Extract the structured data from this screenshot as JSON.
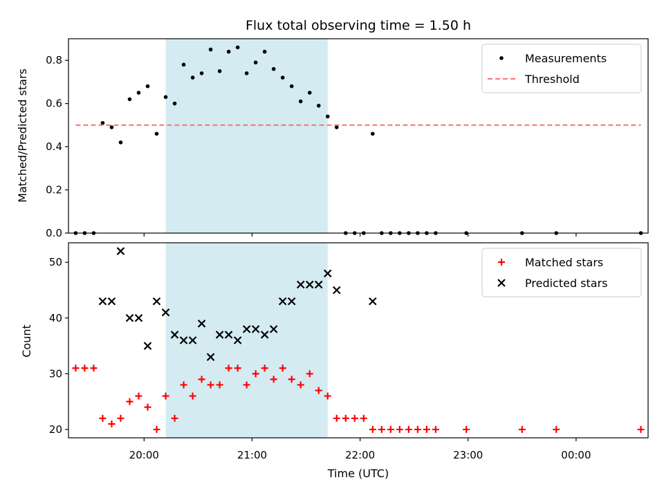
{
  "chart_data": [
    {
      "type": "scatter",
      "title": "Flux total observing time = 1.50 h",
      "xlabel": "",
      "ylabel": "Matched/Predicted stars",
      "ylim": [
        0,
        0.9
      ],
      "y_ticks": [
        "0.0",
        "0.2",
        "0.4",
        "0.6",
        "0.8"
      ],
      "x_tick_labels_visible": false,
      "shaded_interval": {
        "start": "20:12",
        "end": "21:42",
        "color": "#add8e6"
      },
      "legend": {
        "placement": "top-right",
        "entries": [
          "Measurements",
          "Threshold"
        ]
      },
      "series": [
        {
          "name": "Measurements",
          "marker": "dot",
          "color": "#000000",
          "points": [
            [
              "19:22",
              0.0
            ],
            [
              "19:27",
              0.0
            ],
            [
              "19:32",
              0.0
            ],
            [
              "19:37",
              0.51
            ],
            [
              "19:42",
              0.49
            ],
            [
              "19:47",
              0.42
            ],
            [
              "19:52",
              0.62
            ],
            [
              "19:57",
              0.65
            ],
            [
              "20:02",
              0.68
            ],
            [
              "20:07",
              0.46
            ],
            [
              "20:12",
              0.63
            ],
            [
              "20:17",
              0.6
            ],
            [
              "20:22",
              0.78
            ],
            [
              "20:27",
              0.72
            ],
            [
              "20:32",
              0.74
            ],
            [
              "20:37",
              0.85
            ],
            [
              "20:42",
              0.75
            ],
            [
              "20:47",
              0.84
            ],
            [
              "20:52",
              0.86
            ],
            [
              "20:57",
              0.74
            ],
            [
              "21:02",
              0.79
            ],
            [
              "21:07",
              0.84
            ],
            [
              "21:12",
              0.76
            ],
            [
              "21:17",
              0.72
            ],
            [
              "21:22",
              0.68
            ],
            [
              "21:27",
              0.61
            ],
            [
              "21:32",
              0.65
            ],
            [
              "21:37",
              0.59
            ],
            [
              "21:42",
              0.54
            ],
            [
              "21:47",
              0.49
            ],
            [
              "21:52",
              0.0
            ],
            [
              "21:57",
              0.0
            ],
            [
              "22:02",
              0.0
            ],
            [
              "22:07",
              0.46
            ],
            [
              "22:12",
              0.0
            ],
            [
              "22:17",
              0.0
            ],
            [
              "22:22",
              0.0
            ],
            [
              "22:27",
              0.0
            ],
            [
              "22:32",
              0.0
            ],
            [
              "22:37",
              0.0
            ],
            [
              "22:42",
              0.0
            ],
            [
              "22:59",
              0.0
            ],
            [
              "23:30",
              0.0
            ],
            [
              "23:49",
              0.0
            ],
            [
              "00:36",
              0.0
            ]
          ]
        },
        {
          "name": "Threshold",
          "style": "dashed",
          "color": "#ff6f6f",
          "points": [
            [
              "19:22",
              0.5
            ],
            [
              "00:36",
              0.5
            ]
          ]
        }
      ]
    },
    {
      "type": "scatter",
      "title": "",
      "xlabel": "Time (UTC)",
      "ylabel": "Count",
      "ylim": [
        18.5,
        53.5
      ],
      "y_ticks": [
        "20",
        "30",
        "40",
        "50"
      ],
      "x_ticks": [
        "20:00",
        "21:00",
        "22:00",
        "23:00",
        "00:00"
      ],
      "shaded_interval": {
        "start": "20:12",
        "end": "21:42",
        "color": "#add8e6"
      },
      "legend": {
        "placement": "top-right",
        "entries": [
          "Matched stars",
          "Predicted stars"
        ]
      },
      "series": [
        {
          "name": "Matched stars",
          "marker": "plus",
          "color": "#ff0000",
          "points": [
            [
              "19:22",
              31
            ],
            [
              "19:27",
              31
            ],
            [
              "19:32",
              31
            ],
            [
              "19:37",
              22
            ],
            [
              "19:42",
              21
            ],
            [
              "19:47",
              22
            ],
            [
              "19:52",
              25
            ],
            [
              "19:57",
              26
            ],
            [
              "20:02",
              24
            ],
            [
              "20:07",
              20
            ],
            [
              "20:12",
              26
            ],
            [
              "20:17",
              22
            ],
            [
              "20:22",
              28
            ],
            [
              "20:27",
              26
            ],
            [
              "20:32",
              29
            ],
            [
              "20:37",
              28
            ],
            [
              "20:42",
              28
            ],
            [
              "20:47",
              31
            ],
            [
              "20:52",
              31
            ],
            [
              "20:57",
              28
            ],
            [
              "21:02",
              30
            ],
            [
              "21:07",
              31
            ],
            [
              "21:12",
              29
            ],
            [
              "21:17",
              31
            ],
            [
              "21:22",
              29
            ],
            [
              "21:27",
              28
            ],
            [
              "21:32",
              30
            ],
            [
              "21:37",
              27
            ],
            [
              "21:42",
              26
            ],
            [
              "21:47",
              22
            ],
            [
              "21:52",
              22
            ],
            [
              "21:57",
              22
            ],
            [
              "22:02",
              22
            ],
            [
              "22:07",
              20
            ],
            [
              "22:12",
              20
            ],
            [
              "22:17",
              20
            ],
            [
              "22:22",
              20
            ],
            [
              "22:27",
              20
            ],
            [
              "22:32",
              20
            ],
            [
              "22:37",
              20
            ],
            [
              "22:42",
              20
            ],
            [
              "22:59",
              20
            ],
            [
              "23:30",
              20
            ],
            [
              "23:49",
              20
            ],
            [
              "00:36",
              20
            ]
          ]
        },
        {
          "name": "Predicted stars",
          "marker": "x",
          "color": "#000000",
          "points": [
            [
              "19:37",
              43
            ],
            [
              "19:42",
              43
            ],
            [
              "19:47",
              52
            ],
            [
              "19:52",
              40
            ],
            [
              "19:57",
              40
            ],
            [
              "20:02",
              35
            ],
            [
              "20:07",
              43
            ],
            [
              "20:12",
              41
            ],
            [
              "20:17",
              37
            ],
            [
              "20:22",
              36
            ],
            [
              "20:27",
              36
            ],
            [
              "20:32",
              39
            ],
            [
              "20:37",
              33
            ],
            [
              "20:42",
              37
            ],
            [
              "20:47",
              37
            ],
            [
              "20:52",
              36
            ],
            [
              "20:57",
              38
            ],
            [
              "21:02",
              38
            ],
            [
              "21:07",
              37
            ],
            [
              "21:12",
              38
            ],
            [
              "21:17",
              43
            ],
            [
              "21:22",
              43
            ],
            [
              "21:27",
              46
            ],
            [
              "21:32",
              46
            ],
            [
              "21:37",
              46
            ],
            [
              "21:42",
              48
            ],
            [
              "21:47",
              45
            ],
            [
              "22:07",
              43
            ]
          ]
        }
      ]
    }
  ]
}
